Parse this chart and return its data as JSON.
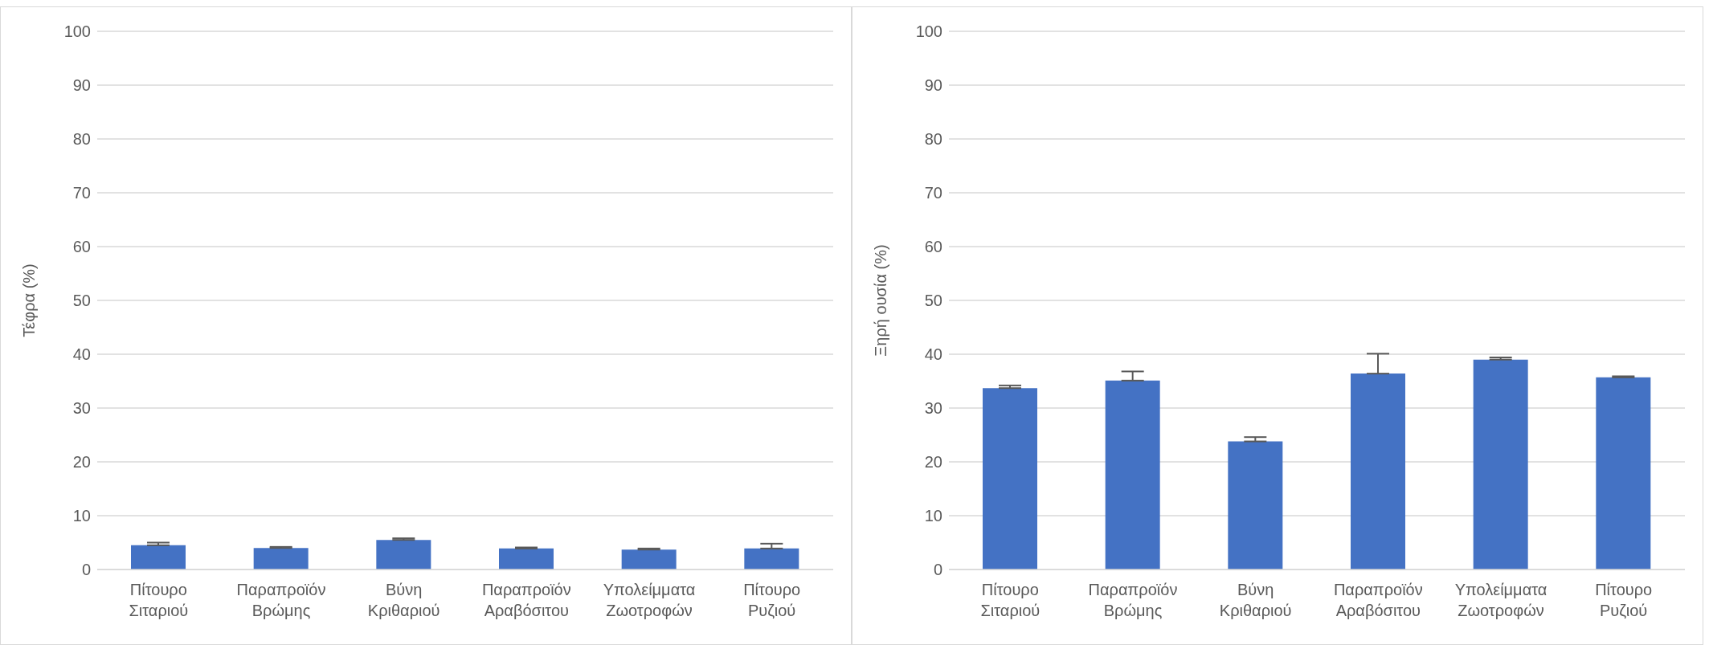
{
  "chart_data": [
    {
      "type": "bar",
      "ylabel": "Τέφρα (%)",
      "categories": [
        "Πίτουρο Σιταριού",
        "Παραπροϊόν Βρώμης",
        "Βύνη Κριθαριού",
        "Παραπροϊόν Αραβόσιτου",
        "Υπολείμματα Ζωοτροφών",
        "Πίτουρο Ρυζιού"
      ],
      "values": [
        4.5,
        4.0,
        5.5,
        3.9,
        3.7,
        3.9
      ],
      "errors": [
        [
          4.5,
          5.0
        ],
        [
          4.0,
          4.2
        ],
        [
          5.5,
          5.8
        ],
        [
          3.9,
          4.1
        ],
        [
          3.7,
          3.9
        ],
        [
          3.9,
          4.8
        ]
      ],
      "color": "#4472c4",
      "ylim": [
        0,
        100
      ],
      "yticks": [
        0,
        10,
        20,
        30,
        40,
        50,
        60,
        70,
        80,
        90,
        100
      ],
      "grid": "y"
    },
    {
      "type": "bar",
      "ylabel": "Ξηρή ουσία (%)",
      "categories": [
        "Πίτουρο Σιταριού",
        "Παραπροϊόν Βρώμης",
        "Βύνη Κριθαριού",
        "Παραπροϊόν Αραβόσιτου",
        "Υπολείμματα Ζωοτροφών",
        "Πίτουρο Ρυζιού"
      ],
      "values": [
        33.7,
        35.1,
        23.8,
        36.4,
        39.0,
        35.7
      ],
      "errors": [
        [
          33.7,
          34.2
        ],
        [
          35.1,
          36.8
        ],
        [
          23.8,
          24.6
        ],
        [
          36.4,
          40.1
        ],
        [
          39.0,
          39.4
        ],
        [
          35.7,
          35.9
        ]
      ],
      "color": "#4472c4",
      "ylim": [
        0,
        100
      ],
      "yticks": [
        0,
        10,
        20,
        30,
        40,
        50,
        60,
        70,
        80,
        90,
        100
      ],
      "grid": "y"
    }
  ]
}
